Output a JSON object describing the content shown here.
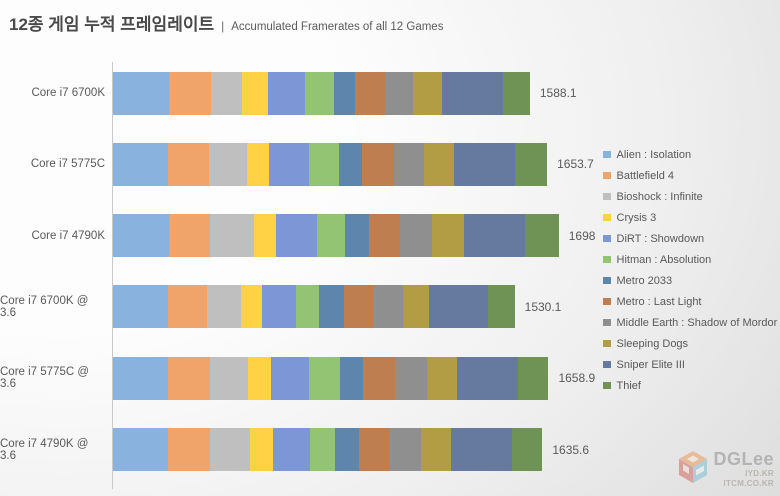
{
  "header": {
    "title_ko": "12종 게임 누적 프레임레이트",
    "separator": "|",
    "subtitle_en": "Accumulated Framerates of all 12 Games"
  },
  "chart_data": {
    "type": "bar",
    "variant": "horizontal-stacked",
    "title": "12종 게임 누적 프레임레이트 | Accumulated Framerates of all 12 Games",
    "xlabel": "",
    "ylabel": "",
    "xlim": [
      0,
      1750
    ],
    "grid": false,
    "legend_position": "right",
    "categories": [
      "Core i7 6700K",
      "Core i7 5775C",
      "Core i7 4790K",
      "Core i7 6700K @ 3.6",
      "Core i7 5775C @ 3.6",
      "Core i7 4790K @ 3.6"
    ],
    "totals": [
      1588.1,
      1653.7,
      1698,
      1530.1,
      1658.9,
      1635.6
    ],
    "total_labels": [
      "1588.1",
      "1653.7",
      "1698",
      "1530.1",
      "1658.9",
      "1635.6"
    ],
    "series": [
      {
        "name": "Alien : Isolation",
        "color": "#89B3DE",
        "values": [
          215,
          210,
          212,
          209,
          208,
          208
        ]
      },
      {
        "name": "Battlefield 4",
        "color": "#F0A469",
        "values": [
          157,
          157,
          159,
          150,
          160,
          160
        ]
      },
      {
        "name": "Bioshock : Infinite",
        "color": "#BFBFBF",
        "values": [
          121,
          144,
          165,
          127,
          148,
          155
        ]
      },
      {
        "name": "Crysis 3",
        "color": "#FFD246",
        "values": [
          96,
          83,
          86,
          83,
          87,
          85
        ]
      },
      {
        "name": "DiRT : Showdown",
        "color": "#7C96D6",
        "values": [
          143,
          151,
          155,
          127,
          144,
          144
        ]
      },
      {
        "name": "Hitman : Absolution",
        "color": "#93C473",
        "values": [
          110,
          115,
          108,
          89,
          118,
          92
        ]
      },
      {
        "name": "Metro 2033",
        "color": "#5E86AC",
        "values": [
          79,
          89,
          89,
          95,
          87,
          93
        ]
      },
      {
        "name": "Metro : Last Light",
        "color": "#BF7E50",
        "values": [
          115,
          122,
          121,
          115,
          122,
          118
        ]
      },
      {
        "name": "Middle Earth : Shadow of Mordor",
        "color": "#8F8F8F",
        "values": [
          106,
          115,
          121,
          108,
          122,
          117
        ]
      },
      {
        "name": "Sleeping Dogs",
        "color": "#B29D45",
        "values": [
          111,
          115,
          120,
          102,
          116,
          117
        ]
      },
      {
        "name": "Sniper Elite III",
        "color": "#66799F",
        "values": [
          233.1,
          231.7,
          235,
          223.1,
          230.9,
          232.6
        ]
      },
      {
        "name": "Thief",
        "color": "#6F9255",
        "values": [
          102,
          121,
          127,
          102,
          116,
          114
        ]
      }
    ]
  },
  "watermark": {
    "brand": "DGLee",
    "line1": "IYD.KR",
    "line2": "ITCM.CO.KR"
  }
}
